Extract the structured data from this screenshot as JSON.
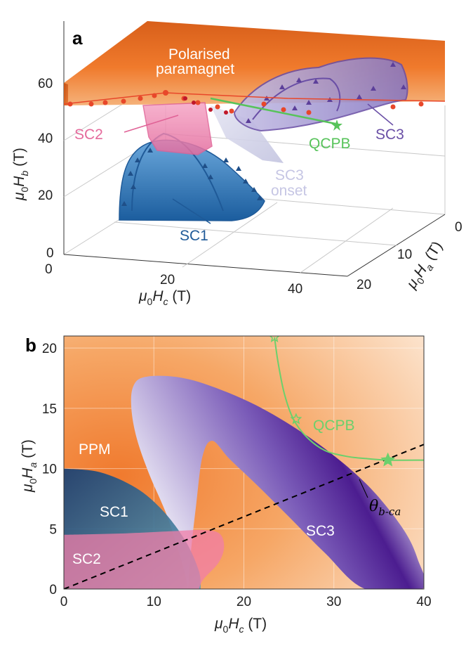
{
  "chart_data": [
    {
      "panel": "a",
      "type": "3d-phase-diagram",
      "axes": {
        "x": {
          "label": "μ0Hc (T)",
          "label_main": "μ",
          "label_sub0": "0",
          "label_mid": "H",
          "label_sub1": "c",
          "label_unit": " (T)",
          "ticks": [
            "0",
            "20",
            "40"
          ]
        },
        "y": {
          "label": "μ0Ha (T)",
          "label_main": "μ",
          "label_sub0": "0",
          "label_mid": "H",
          "label_sub1": "a",
          "label_unit": " (T)",
          "ticks": [
            "0",
            "10",
            "20"
          ]
        },
        "z": {
          "label": "μ0Hb (T)",
          "label_main": "μ",
          "label_sub0": "0",
          "label_mid": "H",
          "label_sub1": "b",
          "label_unit": " (T)",
          "ticks": [
            "0",
            "20",
            "40",
            "60"
          ]
        }
      },
      "labels": {
        "ppm_line1": "Polarised",
        "ppm_line2": "paramagnet",
        "sc1": "SC1",
        "sc2": "SC2",
        "sc3": "SC3",
        "sc3_onset_line1": "SC3",
        "sc3_onset_line2": "onset",
        "qcpb": "QCPB"
      },
      "colors": {
        "ppm": "#ea6a1a",
        "sc1": "#2e6fb0",
        "sc2": "#e87aab",
        "sc3": "#6a4fa6",
        "sc3_onset": "#c6c7e2",
        "qcpb": "#57c35a",
        "markers": "#e8472a"
      }
    },
    {
      "panel": "b",
      "type": "phase-diagram-2d",
      "xlabel": "μ0Hc (T)",
      "ylabel": "μ0Ha (T)",
      "xlim": [
        0,
        40
      ],
      "ylim": [
        0,
        21
      ],
      "xticks": [
        0,
        10,
        20,
        30,
        40
      ],
      "yticks": [
        0,
        5,
        10,
        15,
        20
      ],
      "grid": true,
      "regions": {
        "ppm": "PPM",
        "sc1": "SC1",
        "sc2": "SC2",
        "sc3": "SC3",
        "qcpb": "QCPB",
        "theta": "θ",
        "theta_sub": "b-ca"
      },
      "sc1_boundary": {
        "x": [
          0,
          4,
          8,
          11,
          13.5,
          15,
          15.2
        ],
        "y": [
          10,
          9.7,
          8.4,
          6.5,
          4,
          1.5,
          0
        ]
      },
      "sc2_boundary": {
        "x": [
          0,
          6,
          12,
          15.5,
          17.3,
          17.8,
          17.2,
          15.5,
          15
        ],
        "y": [
          4.5,
          4.6,
          4.8,
          4.9,
          4.6,
          3.5,
          2.2,
          0.8,
          0
        ]
      },
      "sc3_boundary": {
        "x": [
          13.8,
          13.2,
          11.5,
          9.5,
          8.1,
          7.5,
          7.7,
          9,
          12.5,
          16.5,
          22,
          28,
          33.5,
          37.5,
          39.3,
          39.8,
          33.5,
          29,
          25,
          21.5,
          18.4,
          16.5,
          15.4,
          14.7,
          14.1,
          13.8
        ],
        "y": [
          0,
          2,
          6,
          9.5,
          12.5,
          15,
          16.8,
          17.6,
          17.6,
          16.8,
          15,
          12.2,
          8.8,
          5.2,
          2.5,
          0,
          0,
          3,
          6,
          8.6,
          10.8,
          12.3,
          11,
          7,
          3,
          0
        ]
      },
      "qcpb_line": {
        "x": [
          23.4,
          23.8,
          24.5,
          25.5,
          27,
          29,
          31.5,
          34,
          36,
          40
        ],
        "y": [
          20.9,
          18.8,
          16.2,
          14.1,
          12.6,
          11.5,
          11,
          10.8,
          10.7,
          10.7
        ]
      },
      "qcpb_open_markers": [
        {
          "x": 23.4,
          "y": 20.9
        },
        {
          "x": 25.8,
          "y": 14.1
        }
      ],
      "qcpb_filled_marker": {
        "x": 36,
        "y": 10.7
      },
      "theta_line": {
        "x": [
          0,
          40
        ],
        "y": [
          0,
          12
        ]
      },
      "colors": {
        "ppm": "#f08a3c",
        "background": "#fde8d4",
        "sc1": "#1f4f88",
        "sc2": "#f07ea8",
        "sc3": "#4a1a8e",
        "qcpb": "#6cd06c",
        "theta": "#000000"
      }
    }
  ],
  "panel_labels": {
    "a": "a",
    "b": "b"
  }
}
